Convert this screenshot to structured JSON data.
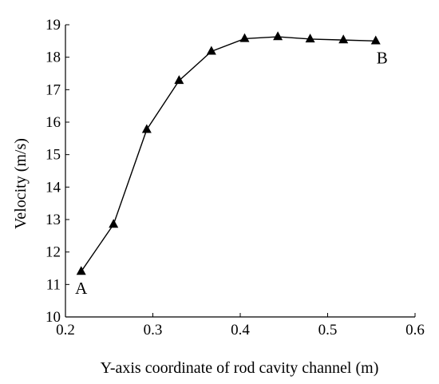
{
  "chart_data": {
    "type": "line",
    "title": "",
    "xlabel": "Y-axis coordinate of  rod cavity channel (m)",
    "ylabel": "Velocity (m/s)",
    "xlim": [
      0.2,
      0.6
    ],
    "ylim": [
      10,
      19
    ],
    "x_ticks": [
      0.2,
      0.3,
      0.4,
      0.5,
      0.6
    ],
    "x_tick_labels": [
      "0.2",
      "0.3",
      "0.4",
      "0.5",
      "0.6"
    ],
    "y_ticks": [
      10,
      11,
      12,
      13,
      14,
      15,
      16,
      17,
      18,
      19
    ],
    "y_tick_labels": [
      "10",
      "11",
      "12",
      "13",
      "14",
      "15",
      "16",
      "17",
      "18",
      "19"
    ],
    "grid": false,
    "legend": "none",
    "marker": "triangle",
    "series": [
      {
        "x": [
          0.218,
          0.255,
          0.293,
          0.33,
          0.367,
          0.405,
          0.443,
          0.48,
          0.518,
          0.555
        ],
        "y": [
          11.4,
          12.85,
          15.77,
          17.28,
          18.18,
          18.57,
          18.63,
          18.56,
          18.53,
          18.5
        ]
      }
    ],
    "annotations": [
      {
        "text": "A",
        "x": 0.218,
        "y": 11.4,
        "placement": "below"
      },
      {
        "text": "B",
        "x": 0.555,
        "y": 18.5,
        "placement": "below-right"
      }
    ],
    "colors": {
      "line": "#000000",
      "marker": "#000000",
      "axis": "#000000"
    }
  }
}
